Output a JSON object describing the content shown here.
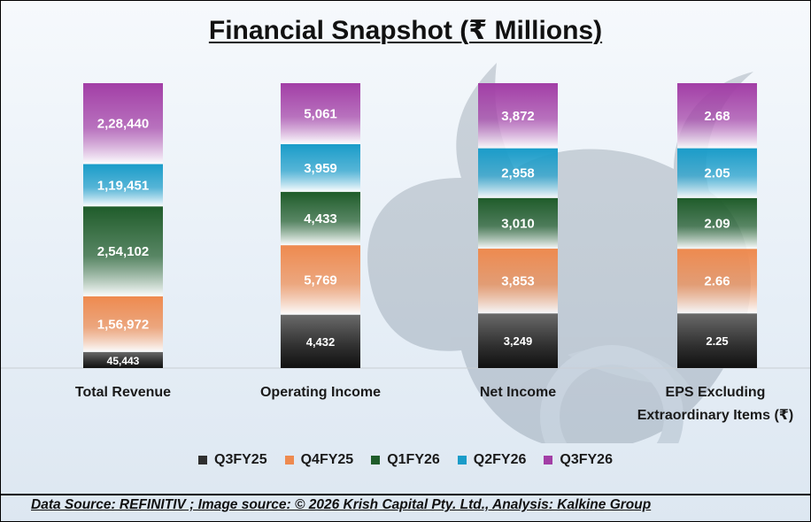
{
  "title": "Financial Snapshot (₹ Millions)",
  "footer": "Data Source: REFINITIV ; Image source: © 2026 Krish Capital Pty. Ltd., Analysis: Kalkine Group",
  "chart_data": {
    "type": "bar",
    "stacked": "100%",
    "title": "Financial Snapshot (₹ Millions)",
    "categories": [
      "Total Revenue",
      "Operating Income",
      "Net Income",
      "EPS Excluding Extraordinary Items (₹)"
    ],
    "series": [
      {
        "name": "Q3FY25",
        "color": "#2f2f2f",
        "values": [
          45443,
          4432,
          3249,
          2.25
        ],
        "labels": [
          "45,443",
          "4,432",
          "3,249",
          "2.25"
        ]
      },
      {
        "name": "Q4FY25",
        "color": "#ee8a4f",
        "values": [
          156972,
          5769,
          3853,
          2.66
        ],
        "labels": [
          "1,56,972",
          "5,769",
          "3,853",
          "2.66"
        ]
      },
      {
        "name": "Q1FY26",
        "color": "#1f5c2a",
        "values": [
          254102,
          4433,
          3010,
          2.09
        ],
        "labels": [
          "2,54,102",
          "4,433",
          "3,010",
          "2.09"
        ]
      },
      {
        "name": "Q2FY26",
        "color": "#1a9cc9",
        "values": [
          119451,
          3959,
          2958,
          2.05
        ],
        "labels": [
          "1,19,451",
          "3,959",
          "2,958",
          "2.05"
        ]
      },
      {
        "name": "Q3FY26",
        "color": "#a23ea6",
        "values": [
          228440,
          5061,
          3872,
          2.68
        ],
        "labels": [
          "2,28,440",
          "5,061",
          "3,872",
          "2.68"
        ]
      }
    ],
    "legend_position": "bottom",
    "grid": false
  }
}
